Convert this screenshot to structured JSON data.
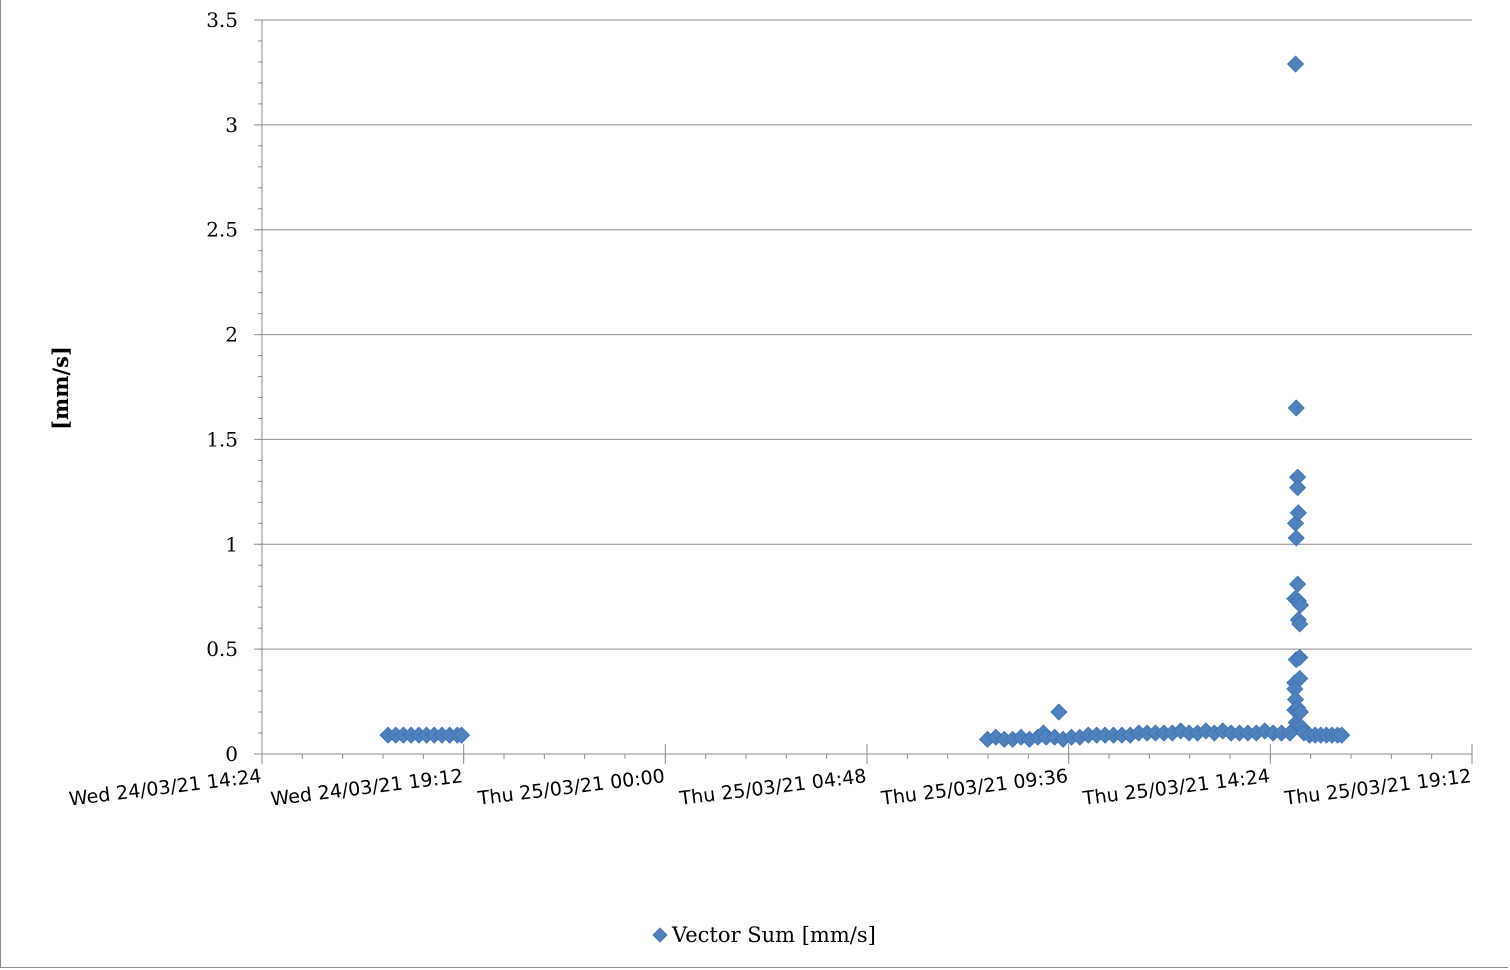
{
  "chart_data": {
    "type": "scatter",
    "title": "",
    "xlabel": "",
    "ylabel": "[mm/s]",
    "xlim": [
      "24/03/21 14:24",
      "25/03/21 19:12"
    ],
    "ylim": [
      0,
      3.5
    ],
    "y_ticks": [
      "0",
      "0.5",
      "1",
      "1.5",
      "2",
      "2.5",
      "3",
      "3.5"
    ],
    "x_ticks": [
      "Wed 24/03/21 14:24",
      "Wed 24/03/21 19:12",
      "Thu 25/03/21 00:00",
      "Thu 25/03/21 04:48",
      "Thu 25/03/21 09:36",
      "Thu 25/03/21 14:24",
      "Thu 25/03/21 19:12"
    ],
    "grid": true,
    "legend_position": "bottom",
    "marker_color": "#4f81bd",
    "series": [
      {
        "name": "Vector Sum [mm/s]",
        "points": [
          [
            "24/03/21 17:24",
            0.09
          ],
          [
            "24/03/21 17:35",
            0.09
          ],
          [
            "24/03/21 17:46",
            0.09
          ],
          [
            "24/03/21 17:57",
            0.09
          ],
          [
            "24/03/21 18:08",
            0.09
          ],
          [
            "24/03/21 18:19",
            0.09
          ],
          [
            "24/03/21 18:30",
            0.09
          ],
          [
            "24/03/21 18:41",
            0.09
          ],
          [
            "24/03/21 18:52",
            0.09
          ],
          [
            "24/03/21 19:03",
            0.09
          ],
          [
            "24/03/21 19:09",
            0.09
          ],
          [
            "25/03/21 07:40",
            0.07
          ],
          [
            "25/03/21 07:52",
            0.08
          ],
          [
            "25/03/21 08:04",
            0.07
          ],
          [
            "25/03/21 08:16",
            0.07
          ],
          [
            "25/03/21 08:28",
            0.08
          ],
          [
            "25/03/21 08:40",
            0.07
          ],
          [
            "25/03/21 08:52",
            0.08
          ],
          [
            "25/03/21 09:00",
            0.1
          ],
          [
            "25/03/21 09:04",
            0.08
          ],
          [
            "25/03/21 09:16",
            0.08
          ],
          [
            "25/03/21 09:22",
            0.2
          ],
          [
            "25/03/21 09:28",
            0.07
          ],
          [
            "25/03/21 09:40",
            0.08
          ],
          [
            "25/03/21 09:52",
            0.08
          ],
          [
            "25/03/21 10:04",
            0.09
          ],
          [
            "25/03/21 10:16",
            0.09
          ],
          [
            "25/03/21 10:28",
            0.09
          ],
          [
            "25/03/21 10:40",
            0.09
          ],
          [
            "25/03/21 10:52",
            0.09
          ],
          [
            "25/03/21 11:04",
            0.09
          ],
          [
            "25/03/21 11:16",
            0.1
          ],
          [
            "25/03/21 11:28",
            0.1
          ],
          [
            "25/03/21 11:40",
            0.1
          ],
          [
            "25/03/21 11:52",
            0.1
          ],
          [
            "25/03/21 12:04",
            0.1
          ],
          [
            "25/03/21 12:16",
            0.11
          ],
          [
            "25/03/21 12:28",
            0.1
          ],
          [
            "25/03/21 12:40",
            0.1
          ],
          [
            "25/03/21 12:52",
            0.11
          ],
          [
            "25/03/21 13:04",
            0.1
          ],
          [
            "25/03/21 13:16",
            0.11
          ],
          [
            "25/03/21 13:28",
            0.1
          ],
          [
            "25/03/21 13:40",
            0.1
          ],
          [
            "25/03/21 13:52",
            0.1
          ],
          [
            "25/03/21 14:04",
            0.1
          ],
          [
            "25/03/21 14:16",
            0.11
          ],
          [
            "25/03/21 14:28",
            0.1
          ],
          [
            "25/03/21 14:40",
            0.1
          ],
          [
            "25/03/21 14:52",
            0.1
          ],
          [
            "25/03/21 15:00",
            3.29
          ],
          [
            "25/03/21 15:01",
            1.65
          ],
          [
            "25/03/21 15:00",
            1.1
          ],
          [
            "25/03/21 15:01",
            1.03
          ],
          [
            "25/03/21 14:59",
            0.74
          ],
          [
            "25/03/21 15:01",
            0.45
          ],
          [
            "25/03/21 14:59",
            0.34
          ],
          [
            "25/03/21 14:59",
            0.31
          ],
          [
            "25/03/21 15:00",
            0.26
          ],
          [
            "25/03/21 14:59",
            0.21
          ],
          [
            "25/03/21 15:01",
            0.15
          ],
          [
            "25/03/21 15:03",
            1.32
          ],
          [
            "25/03/21 15:03",
            1.27
          ],
          [
            "25/03/21 15:04",
            1.15
          ],
          [
            "25/03/21 15:03",
            0.81
          ],
          [
            "25/03/21 15:04",
            0.73
          ],
          [
            "25/03/21 15:04",
            0.64
          ],
          [
            "25/03/21 15:03",
            0.22
          ],
          [
            "25/03/21 15:04",
            0.14
          ],
          [
            "25/03/21 15:07",
            0.71
          ],
          [
            "25/03/21 15:06",
            0.62
          ],
          [
            "25/03/21 15:06",
            0.46
          ],
          [
            "25/03/21 15:06",
            0.36
          ],
          [
            "25/03/21 15:07",
            0.2
          ],
          [
            "25/03/21 15:08",
            0.13
          ],
          [
            "25/03/21 15:12",
            0.1
          ],
          [
            "25/03/21 15:20",
            0.09
          ],
          [
            "25/03/21 15:28",
            0.09
          ],
          [
            "25/03/21 15:36",
            0.09
          ],
          [
            "25/03/21 15:44",
            0.09
          ],
          [
            "25/03/21 15:52",
            0.09
          ],
          [
            "25/03/21 16:00",
            0.09
          ],
          [
            "25/03/21 16:06",
            0.09
          ]
        ]
      }
    ]
  }
}
